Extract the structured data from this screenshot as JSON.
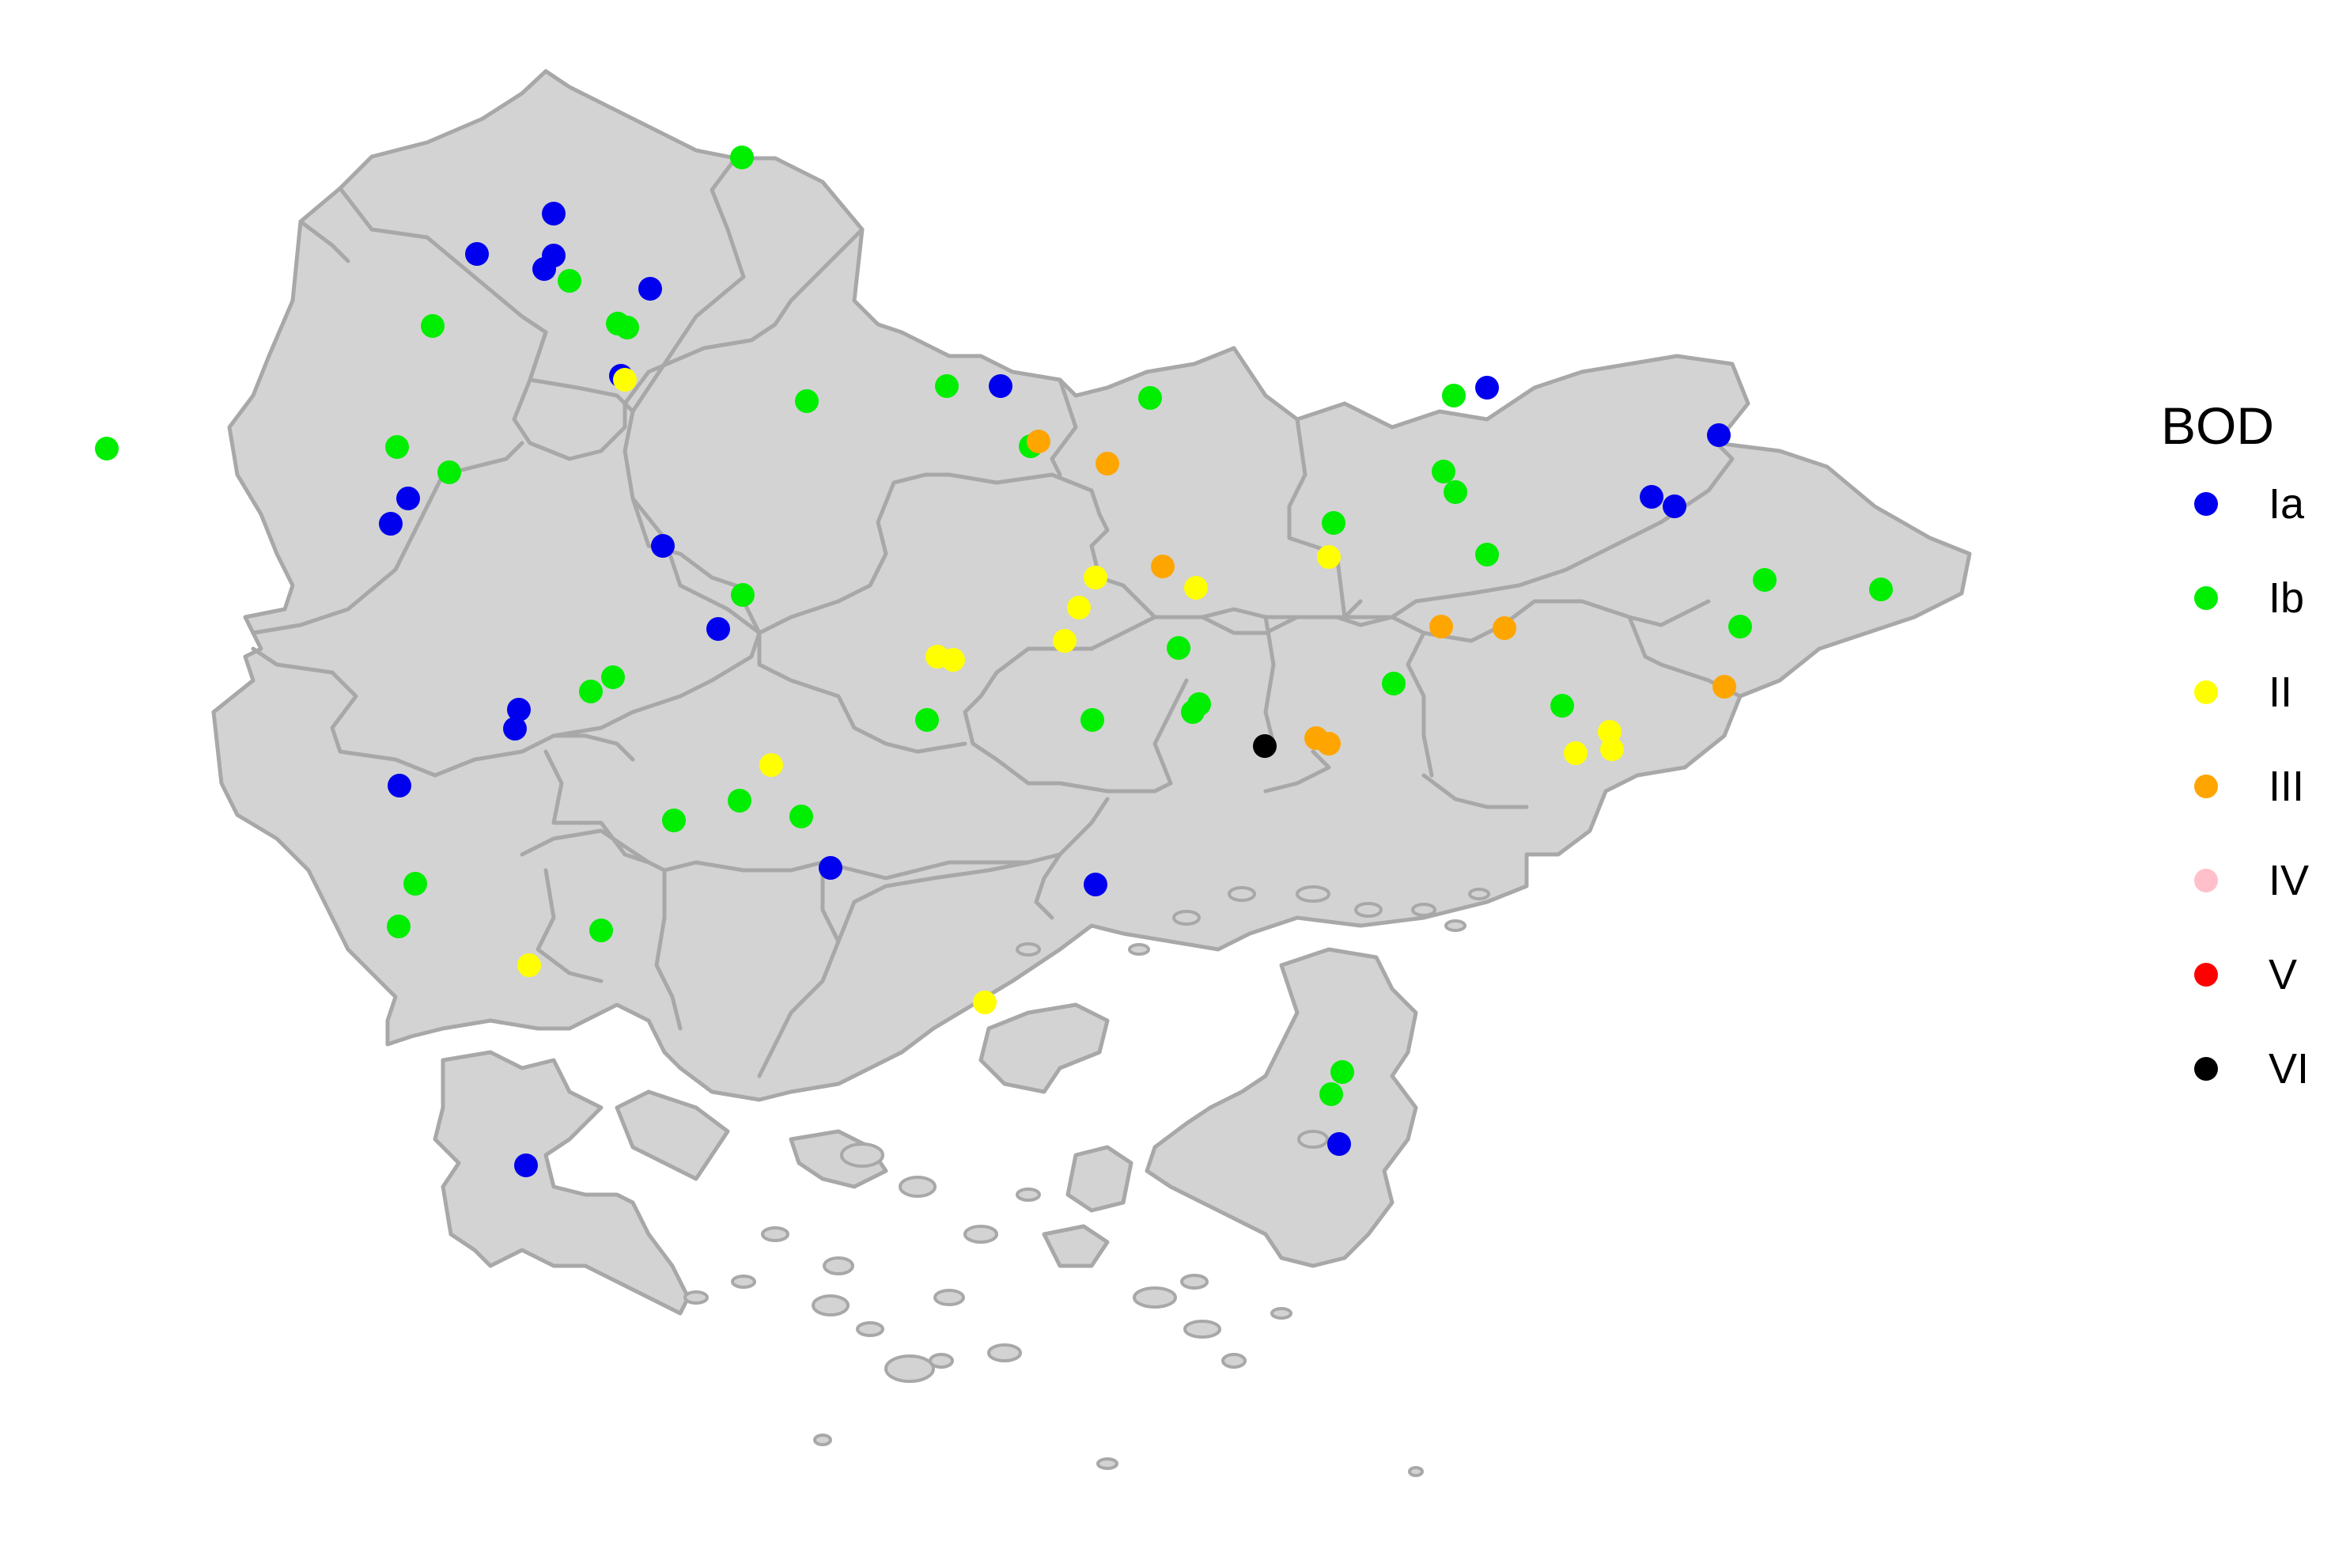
{
  "legend": {
    "title": "BOD",
    "classes": [
      {
        "label": "Ia",
        "color": "#0000ee"
      },
      {
        "label": "Ib",
        "color": "#00ee00"
      },
      {
        "label": "II",
        "color": "#ffff00"
      },
      {
        "label": "III",
        "color": "#ffa500"
      },
      {
        "label": "IV",
        "color": "#ffc0cb"
      },
      {
        "label": "V",
        "color": "#ff0000"
      },
      {
        "label": "VI",
        "color": "#000000"
      }
    ]
  },
  "map_style": {
    "land_color": "#d3d3d3",
    "border_color": "#a8a8a8",
    "background": "#ffffff"
  }
}
